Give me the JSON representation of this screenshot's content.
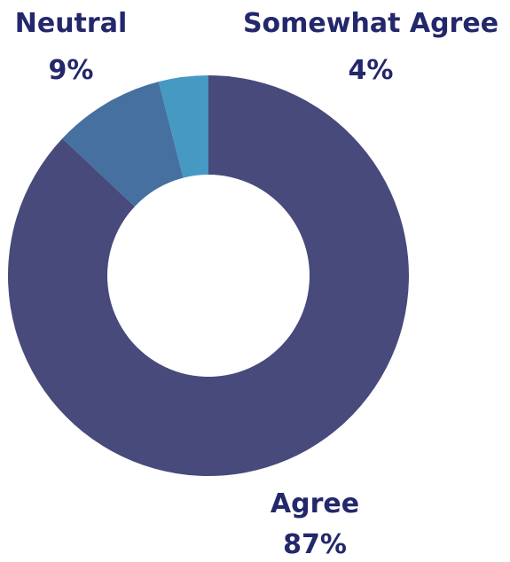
{
  "chart_data": {
    "type": "pie",
    "categories": [
      "Agree",
      "Neutral",
      "Somewhat Agree"
    ],
    "values": [
      87,
      9,
      4
    ],
    "value_labels": [
      "87%",
      "9%",
      "4%"
    ],
    "title": "",
    "colors": [
      "#474a7a",
      "#45709f",
      "#4599c3"
    ],
    "label_color": "#23276b",
    "legend": "none"
  }
}
